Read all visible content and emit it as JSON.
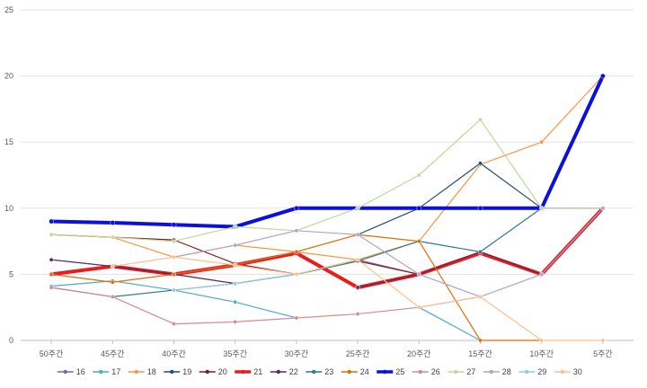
{
  "chart_data": {
    "type": "line",
    "title": "",
    "xlabel": "",
    "ylabel": "",
    "categories": [
      "50주간",
      "45주간",
      "40주간",
      "35주간",
      "30주간",
      "25주간",
      "20주간",
      "15주간",
      "10주간",
      "5주간"
    ],
    "ylim": [
      0,
      25
    ],
    "yticks": [
      0,
      5,
      10,
      15,
      20,
      25
    ],
    "grid": "horizontal",
    "legend": "bottom",
    "series": [
      {
        "name": "16",
        "color": "#8064a2",
        "width": 1.2,
        "values": [
          6.1,
          5.6,
          5.0,
          4.3,
          5.0,
          6.1,
          5.0,
          6.7,
          5.0,
          10.0
        ]
      },
      {
        "name": "17",
        "color": "#4bacc6",
        "width": 1.2,
        "values": [
          4.1,
          4.5,
          3.8,
          2.9,
          1.7,
          null,
          2.5,
          0,
          null,
          null
        ]
      },
      {
        "name": "18",
        "color": "#f79646",
        "width": 1.2,
        "values": [
          8.0,
          7.8,
          6.3,
          7.2,
          6.7,
          6.1,
          7.5,
          13.3,
          15.0,
          20.0
        ]
      },
      {
        "name": "19",
        "color": "#1f4e79",
        "width": 1.2,
        "values": [
          null,
          null,
          null,
          null,
          null,
          8.0,
          10.0,
          13.4,
          10.0,
          20.0
        ]
      },
      {
        "name": "20",
        "color": "#7b1c1c",
        "width": 1.2,
        "values": [
          8.0,
          7.8,
          7.6,
          5.8,
          5.0,
          6.0,
          5.0,
          6.7,
          5.0,
          10.0
        ]
      },
      {
        "name": "21",
        "color": "#e81e1e",
        "width": 4,
        "values": [
          5.0,
          5.6,
          5.0,
          5.7,
          6.6,
          4.0,
          5.0,
          6.6,
          5.0,
          10.0
        ]
      },
      {
        "name": "22",
        "color": "#5b2a5b",
        "width": 1.2,
        "values": [
          6.1,
          5.6,
          5.0,
          4.3,
          null,
          4.0,
          5.0,
          6.7,
          5.0,
          10.0
        ]
      },
      {
        "name": "23",
        "color": "#2c7c8c",
        "width": 1.2,
        "values": [
          4.0,
          3.3,
          3.8,
          4.3,
          5.0,
          6.0,
          7.5,
          6.7,
          10.0,
          10.0
        ]
      },
      {
        "name": "24",
        "color": "#e36c09",
        "width": 1.2,
        "values": [
          5.0,
          4.4,
          5.0,
          5.7,
          6.7,
          8.0,
          7.5,
          0,
          0,
          null
        ]
      },
      {
        "name": "25",
        "color": "#0b10e0",
        "width": 4,
        "values": [
          9.0,
          8.9,
          8.75,
          8.6,
          10.0,
          10.0,
          10.0,
          10.0,
          10.0,
          20.0
        ]
      },
      {
        "name": "26",
        "color": "#d28c8c",
        "width": 1.2,
        "values": [
          4.0,
          3.3,
          1.25,
          1.4,
          1.7,
          2.0,
          2.5,
          3.3,
          null,
          null
        ]
      },
      {
        "name": "27",
        "color": "#c3d69b",
        "width": 1.2,
        "values": [
          8.0,
          7.8,
          7.5,
          8.6,
          8.3,
          10.0,
          12.5,
          16.7,
          10.0,
          10.0
        ]
      },
      {
        "name": "28",
        "color": "#b3a2c7",
        "width": 1.2,
        "values": [
          null,
          null,
          6.3,
          7.2,
          8.3,
          8.0,
          5.0,
          3.3,
          5.0,
          10.0
        ]
      },
      {
        "name": "29",
        "color": "#92cddc",
        "width": 1.2,
        "values": [
          null,
          null,
          3.8,
          4.3,
          5.0,
          null,
          null,
          null,
          null,
          null
        ]
      },
      {
        "name": "30",
        "color": "#fac090",
        "width": 1.2,
        "values": [
          null,
          5.6,
          6.3,
          5.7,
          5.0,
          6.1,
          2.5,
          3.3,
          0,
          0
        ]
      }
    ]
  }
}
